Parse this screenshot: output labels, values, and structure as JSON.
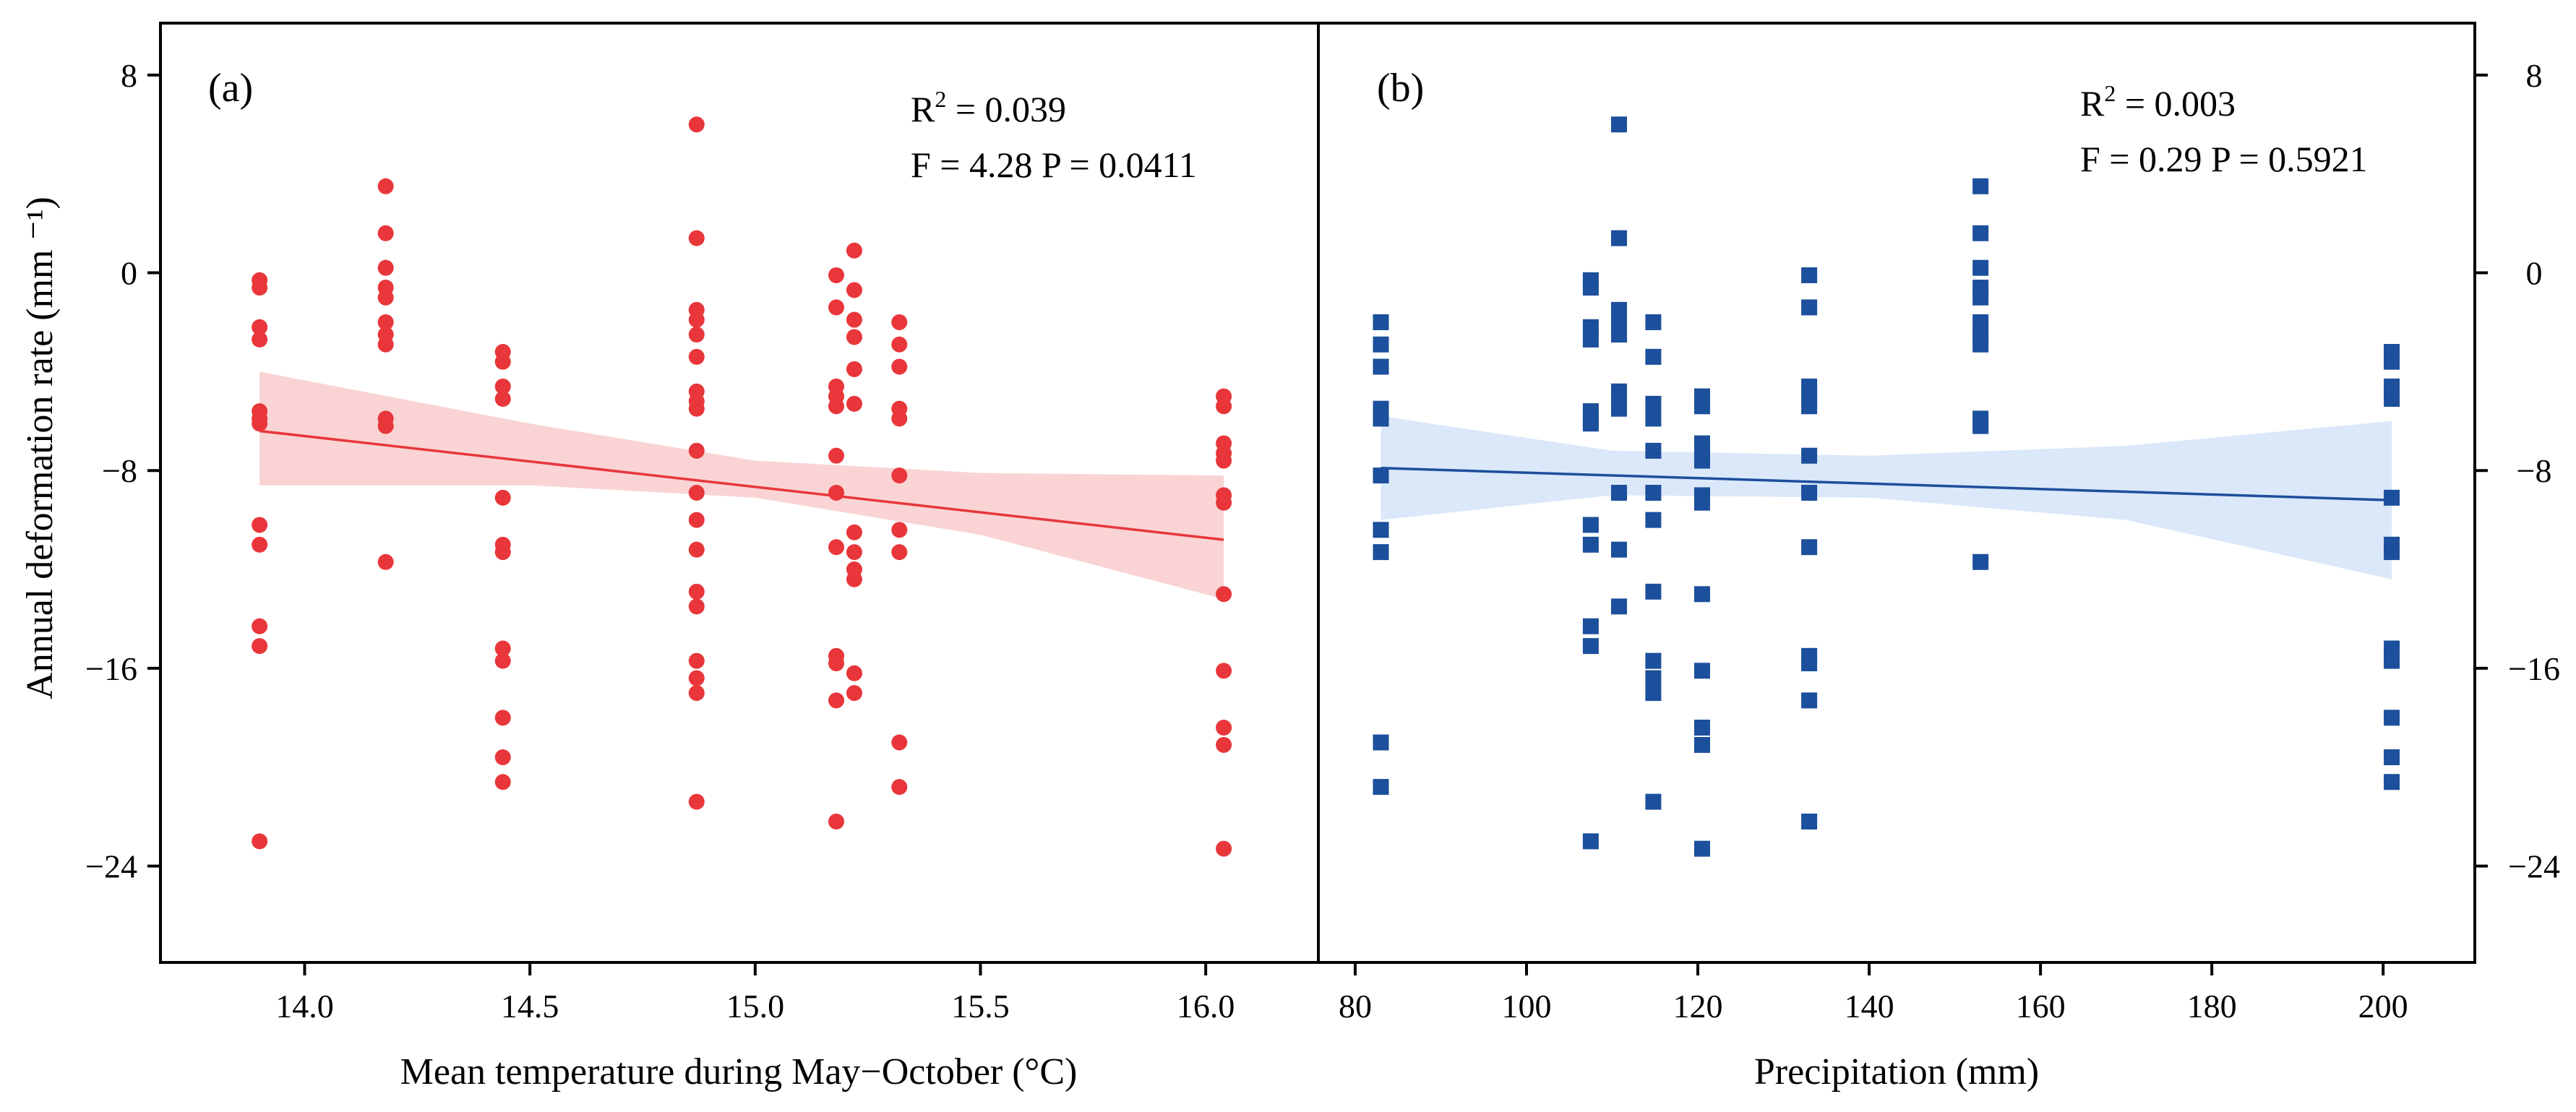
{
  "chart_data": [
    {
      "type": "scatter",
      "panel_label": "(a)",
      "xlabel": "Mean temperature during May−October (°C)",
      "ylabel": "Annual deformation rate (mm ⁻¹)",
      "xlim": [
        13.68,
        16.25
      ],
      "ylim": [
        -27.9,
        10.1
      ],
      "xticks": [
        14.0,
        14.5,
        15.0,
        15.5,
        16.0
      ],
      "xtick_labels": [
        "14.0",
        "14.5",
        "15.0",
        "15.5",
        "16.0"
      ],
      "yticks": [
        8,
        0,
        -8,
        -16,
        -24
      ],
      "ytick_labels": [
        "8",
        "0",
        "−8",
        "−16",
        "−24"
      ],
      "stats": {
        "r2_prefix": "R",
        "r2_suffix": " = 0.039",
        "fp": "F = 4.28  P = 0.0411"
      },
      "marker": "circle",
      "color": "#e8363a",
      "band_color": "#f9cfcf",
      "fit": {
        "x": [
          13.9,
          16.04
        ],
        "y": [
          -6.4,
          -10.8
        ]
      },
      "band": {
        "x": [
          13.9,
          14.5,
          15.0,
          15.5,
          16.04
        ],
        "upper": [
          -4.0,
          -6.1,
          -7.6,
          -8.1,
          -8.2
        ],
        "lower": [
          -8.6,
          -8.6,
          -9.1,
          -10.6,
          -13.2
        ]
      },
      "points": [
        {
          "x": 13.9,
          "values": [
            -0.3,
            -0.6,
            -2.2,
            -2.7,
            -5.6,
            -5.9,
            -6.1,
            -10.2,
            -11.0,
            -14.3,
            -15.1,
            -23.0
          ]
        },
        {
          "x": 14.18,
          "values": [
            3.5,
            1.6,
            0.2,
            -0.6,
            -1.0,
            -2.0,
            -2.5,
            -2.9,
            -5.9,
            -6.2,
            -11.7
          ]
        },
        {
          "x": 14.44,
          "values": [
            -3.2,
            -3.6,
            -4.6,
            -5.1,
            -9.1,
            -11.0,
            -11.3,
            -15.2,
            -15.7,
            -18.0,
            -19.6,
            -20.6
          ]
        },
        {
          "x": 14.87,
          "values": [
            6.0,
            1.4,
            -1.5,
            -1.9,
            -2.5,
            -3.4,
            -4.8,
            -5.2,
            -5.5,
            -7.2,
            -8.9,
            -10.0,
            -11.2,
            -12.9,
            -13.5,
            -15.7,
            -16.4,
            -17.0,
            -21.4
          ]
        },
        {
          "x": 15.18,
          "values": [
            -0.1,
            -1.4,
            -4.6,
            -5.0,
            -5.4,
            -7.4,
            -8.9,
            -11.1,
            -15.5,
            -15.8,
            -17.3,
            -22.2
          ]
        },
        {
          "x": 15.22,
          "values": [
            0.9,
            -0.7,
            -1.9,
            -2.6,
            -3.9,
            -5.3,
            -10.5,
            -11.3,
            -12.0,
            -12.4,
            -16.2,
            -17.0
          ]
        },
        {
          "x": 15.32,
          "values": [
            -2.0,
            -2.9,
            -3.8,
            -5.5,
            -5.9,
            -8.2,
            -10.4,
            -11.3,
            -19.0,
            -20.8
          ]
        },
        {
          "x": 16.04,
          "values": [
            -5.0,
            -5.4,
            -6.9,
            -7.3,
            -7.6,
            -9.0,
            -9.3,
            -13.0,
            -16.1,
            -18.4,
            -19.1,
            -23.3
          ]
        }
      ]
    },
    {
      "type": "scatter",
      "panel_label": "(b)",
      "xlabel": "Precipitation (mm)",
      "xlim": [
        75.7,
        210.7
      ],
      "ylim": [
        -27.9,
        10.1
      ],
      "xticks": [
        80,
        100,
        120,
        140,
        160,
        180,
        200
      ],
      "xtick_labels": [
        "80",
        "100",
        "120",
        "140",
        "160",
        "180",
        "200"
      ],
      "yticks": [
        8,
        0,
        -8,
        -16,
        -24
      ],
      "ytick_labels": [
        "8",
        "0",
        "−8",
        "−16",
        "−24"
      ],
      "stats": {
        "r2_prefix": "R",
        "r2_suffix": " = 0.003",
        "fp": "F = 0.29  P = 0.5921"
      },
      "marker": "square",
      "color": "#1c4f9c",
      "band_color": "#d6e5f8",
      "fit": {
        "x": [
          83.0,
          201.0
        ],
        "y": [
          -7.9,
          -9.2
        ]
      },
      "band": {
        "x": [
          83.0,
          110,
          140,
          170,
          201.0
        ],
        "upper": [
          -5.8,
          -7.2,
          -7.4,
          -7.0,
          -6.0
        ],
        "lower": [
          -10.0,
          -9.0,
          -9.1,
          -10.0,
          -12.4
        ]
      },
      "points": [
        {
          "x": 83.0,
          "values": [
            -2.0,
            -2.9,
            -3.8,
            -5.5,
            -5.9,
            -8.2,
            -10.4,
            -11.3,
            -19.0,
            -20.8
          ]
        },
        {
          "x": 107.5,
          "values": [
            -0.3,
            -0.6,
            -2.2,
            -2.7,
            -5.6,
            -5.9,
            -6.1,
            -10.2,
            -11.0,
            -14.3,
            -15.1,
            -23.0
          ]
        },
        {
          "x": 110.8,
          "values": [
            6.0,
            1.4,
            -1.5,
            -1.9,
            -2.5,
            -4.8,
            -5.2,
            -5.5,
            -8.9,
            -11.2,
            -13.5
          ]
        },
        {
          "x": 114.8,
          "values": [
            -2.0,
            -3.4,
            -5.3,
            -5.9,
            -7.2,
            -8.9,
            -10.0,
            -12.9,
            -15.7,
            -16.4,
            -17.0,
            -21.4
          ]
        },
        {
          "x": 120.5,
          "values": [
            -5.0,
            -5.4,
            -6.9,
            -7.3,
            -7.6,
            -9.0,
            -9.3,
            -13.0,
            -16.1,
            -18.4,
            -19.1,
            -23.3
          ]
        },
        {
          "x": 133.0,
          "values": [
            -0.1,
            -1.4,
            -4.6,
            -5.0,
            -5.4,
            -7.4,
            -8.9,
            -11.1,
            -15.5,
            -15.8,
            -17.3,
            -22.2
          ]
        },
        {
          "x": 153.0,
          "values": [
            3.5,
            1.6,
            0.2,
            -0.6,
            -1.0,
            -2.0,
            -2.5,
            -2.9,
            -5.9,
            -6.2,
            -11.7
          ]
        },
        {
          "x": 201.0,
          "values": [
            -3.2,
            -3.6,
            -4.6,
            -5.1,
            -9.1,
            -11.0,
            -11.3,
            -15.2,
            -15.7,
            -18.0,
            -19.6,
            -20.6
          ]
        }
      ]
    }
  ]
}
